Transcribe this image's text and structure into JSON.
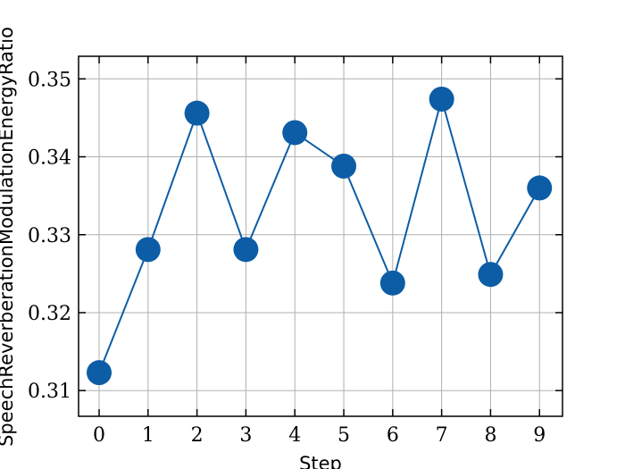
{
  "chart_data": {
    "type": "line",
    "xlabel": "Step",
    "ylabel": "SpeechReverberationModulationEnergyRatio",
    "x": [
      0,
      1,
      2,
      3,
      4,
      5,
      6,
      7,
      8,
      9
    ],
    "series": [
      {
        "name": "SpeechReverberationModulationEnergyRatio",
        "color": "#0C5DA5",
        "values": [
          0.3123,
          0.3281,
          0.3456,
          0.3281,
          0.3431,
          0.3388,
          0.3238,
          0.3474,
          0.3249,
          0.336
        ]
      }
    ],
    "xlim": [
      -0.42,
      9.47
    ],
    "xticks": [
      0,
      1,
      2,
      3,
      4,
      5,
      6,
      7,
      8,
      9
    ],
    "ylim": [
      0.3067,
      0.3529
    ],
    "yticks": [
      0.31,
      0.32,
      0.33,
      0.34,
      0.35
    ],
    "grid": true
  }
}
